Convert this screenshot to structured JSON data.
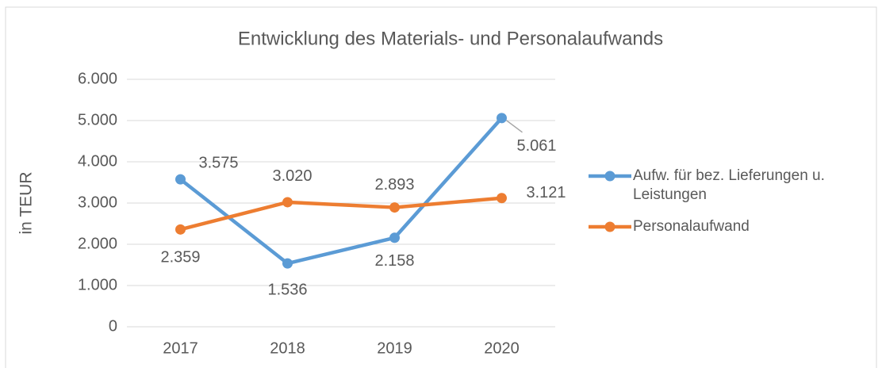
{
  "chart_data": {
    "type": "line",
    "title": "Entwicklung des Materials- und Personalaufwands",
    "y_label": "in TEUR",
    "categories": [
      "2017",
      "2018",
      "2019",
      "2020"
    ],
    "series": [
      {
        "name": "Aufw. für bez. Lieferungen u. Leistungen",
        "color": "#5b9bd5",
        "values": [
          3575,
          1536,
          2158,
          5061
        ],
        "value_labels": [
          "3.575",
          "1.536",
          "2.158",
          "5.061"
        ]
      },
      {
        "name": "Personalaufwand",
        "color": "#ed7d31",
        "values": [
          2359,
          3020,
          2893,
          3121
        ],
        "value_labels": [
          "2.359",
          "3.020",
          "2.893",
          "3.121"
        ]
      }
    ],
    "ylim": [
      0,
      6000
    ],
    "yticks": [
      0,
      {
        "value": 1000,
        "label": "1.000"
      },
      {
        "value": 2000,
        "label": "2.000"
      },
      {
        "value": 3000,
        "label": "3.000"
      },
      {
        "value": 4000,
        "label": "4.000"
      },
      {
        "value": 5000,
        "label": "5.000"
      },
      {
        "value": 6000,
        "label": "6.000"
      }
    ],
    "grid": true,
    "legend": "right"
  }
}
